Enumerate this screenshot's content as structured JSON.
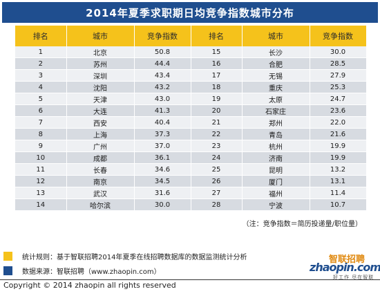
{
  "title": "2014年夏季求职期日均竞争指数城市分布",
  "table": {
    "headers": [
      "排名",
      "城市",
      "竞争指数",
      "排名",
      "城市",
      "竞争指数"
    ],
    "rows": [
      [
        "1",
        "北京",
        "50.8",
        "15",
        "长沙",
        "30.0"
      ],
      [
        "2",
        "苏州",
        "44.4",
        "16",
        "合肥",
        "28.5"
      ],
      [
        "3",
        "深圳",
        "43.4",
        "17",
        "无锡",
        "27.9"
      ],
      [
        "4",
        "沈阳",
        "43.2",
        "18",
        "重庆",
        "25.3"
      ],
      [
        "5",
        "天津",
        "43.0",
        "19",
        "太原",
        "24.7"
      ],
      [
        "6",
        "大连",
        "41.3",
        "20",
        "石家庄",
        "23.6"
      ],
      [
        "7",
        "西安",
        "40.4",
        "21",
        "郑州",
        "22.0"
      ],
      [
        "8",
        "上海",
        "37.3",
        "22",
        "青岛",
        "21.6"
      ],
      [
        "9",
        "广州",
        "37.0",
        "23",
        "杭州",
        "19.9"
      ],
      [
        "10",
        "成都",
        "36.1",
        "24",
        "济南",
        "19.9"
      ],
      [
        "11",
        "长春",
        "34.6",
        "25",
        "昆明",
        "13.2"
      ],
      [
        "12",
        "南京",
        "34.5",
        "26",
        "厦门",
        "13.1"
      ],
      [
        "13",
        "武汉",
        "31.6",
        "27",
        "福州",
        "11.4"
      ],
      [
        "14",
        "哈尔滨",
        "30.0",
        "28",
        "宁波",
        "10.7"
      ]
    ]
  },
  "note": "（注：竞争指数＝简历投递量/职位量）",
  "stats_rule": "统计规则：基于智联招聘2014年夏季在线招聘数据库的数据监测统计分析",
  "data_source": "数据来源：智联招聘（www.zhaopin.com）",
  "logo": {
    "name_cn": "智联招聘",
    "name_en": "zhaopin.com",
    "slogan": "好工作 尽在智联"
  },
  "copyright": "Copyright  ©  2014 zhaopin all rights reserved",
  "colors": {
    "title_bg": "#1f4e8f",
    "header_bg": "#f5c21b",
    "row_light": "#eef0f3",
    "row_dark": "#d7dbe1"
  }
}
